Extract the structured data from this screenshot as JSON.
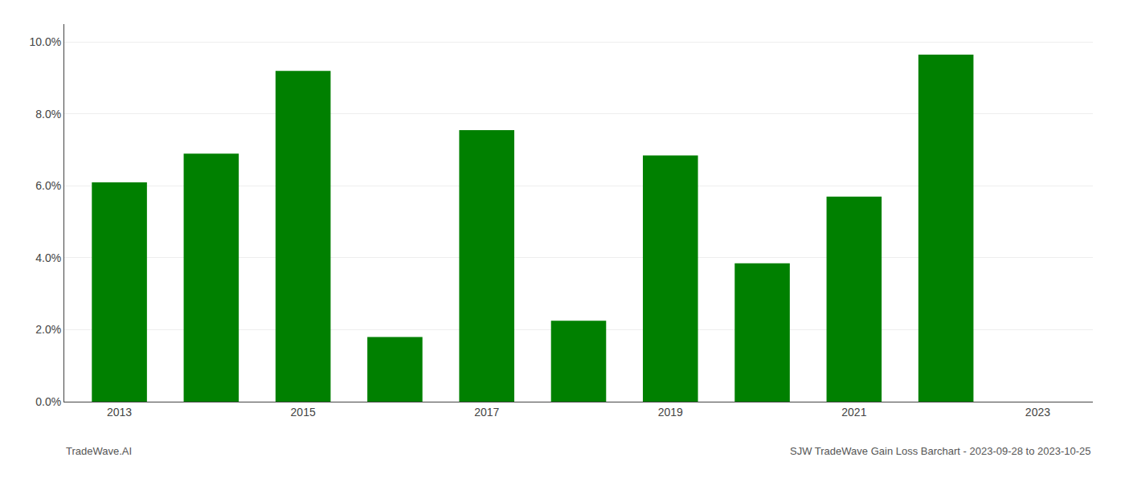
{
  "chart_data": {
    "type": "bar",
    "x": [
      2013,
      2014,
      2015,
      2016,
      2017,
      2018,
      2019,
      2020,
      2021,
      2022
    ],
    "values": [
      0.061,
      0.069,
      0.092,
      0.018,
      0.0755,
      0.0225,
      0.0685,
      0.0385,
      0.057,
      0.0965
    ],
    "color": "#008000",
    "xlim": [
      2012.4,
      2023.6
    ],
    "xticks": [
      2013,
      2015,
      2017,
      2019,
      2021,
      2023
    ],
    "ylim": [
      0,
      0.105
    ],
    "yticks": [
      {
        "value": 0.0,
        "label": "0.0%"
      },
      {
        "value": 0.02,
        "label": "2.0%"
      },
      {
        "value": 0.04,
        "label": "4.0%"
      },
      {
        "value": 0.06,
        "label": "6.0%"
      },
      {
        "value": 0.08,
        "label": "8.0%"
      },
      {
        "value": 0.1,
        "label": "10.0%"
      }
    ],
    "grid": true,
    "annotations": [
      "TradeWave.AI",
      "SJW TradeWave Gain Loss Barchart - 2023-09-28 to 2023-10-25"
    ]
  }
}
